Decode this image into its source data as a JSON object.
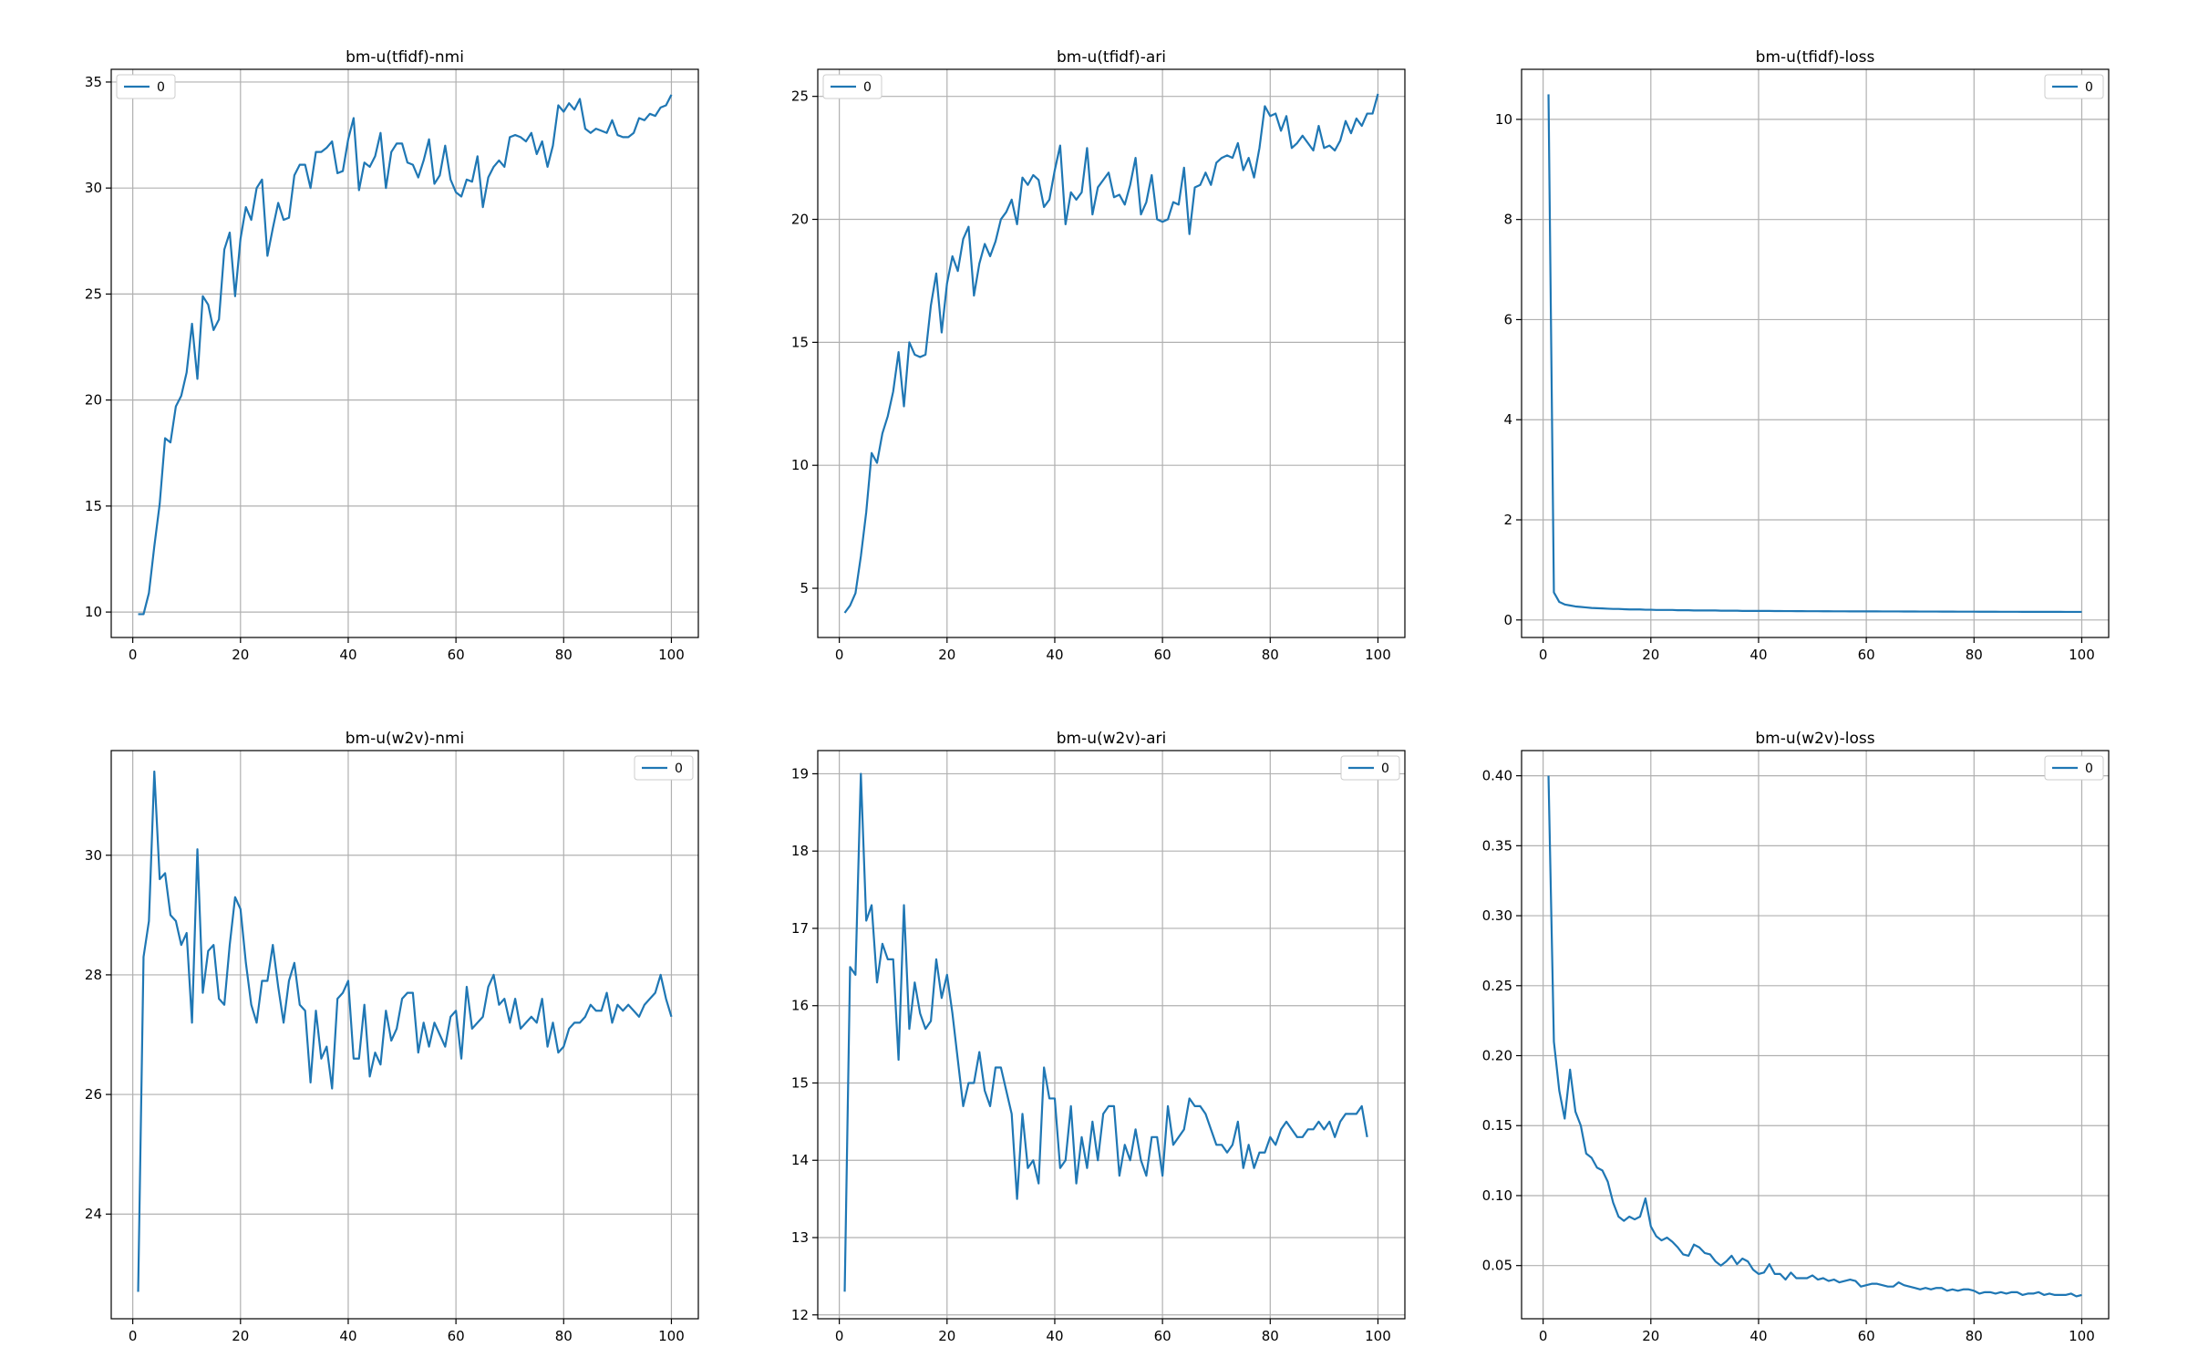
{
  "figure": {
    "line_color": "#1f77b4"
  },
  "chart_data": [
    {
      "type": "line",
      "title": "bm-u(tfidf)-nmi",
      "xlabel": "",
      "ylabel": "",
      "xlim": [
        -4,
        105
      ],
      "ylim": [
        8.8,
        35.6
      ],
      "xticks": [
        0,
        20,
        40,
        60,
        80,
        100
      ],
      "yticks": [
        10,
        15,
        20,
        25,
        30,
        35
      ],
      "grid": true,
      "legend": "upper-left",
      "series": [
        {
          "name": "0",
          "x_start": 1,
          "values": [
            9.9,
            9.9,
            10.9,
            13.1,
            15.1,
            18.2,
            18.0,
            19.7,
            20.2,
            21.3,
            23.6,
            21.0,
            24.9,
            24.5,
            23.3,
            23.8,
            27.1,
            27.9,
            24.9,
            27.6,
            29.1,
            28.5,
            30.0,
            30.4,
            26.8,
            28.1,
            29.3,
            28.5,
            28.6,
            30.6,
            31.1,
            31.1,
            30.0,
            31.7,
            31.7,
            31.9,
            32.2,
            30.7,
            30.8,
            32.3,
            33.3,
            29.9,
            31.2,
            31.0,
            31.5,
            32.6,
            30.0,
            31.7,
            32.1,
            32.1,
            31.2,
            31.1,
            30.5,
            31.3,
            32.3,
            30.2,
            30.6,
            32.0,
            30.4,
            29.8,
            29.6,
            30.4,
            30.3,
            31.5,
            29.1,
            30.5,
            31.0,
            31.3,
            31.0,
            32.4,
            32.5,
            32.4,
            32.2,
            32.6,
            31.6,
            32.2,
            31.0,
            32.0,
            33.9,
            33.6,
            34.0,
            33.7,
            34.2,
            32.8,
            32.6,
            32.8,
            32.7,
            32.6,
            33.2,
            32.5,
            32.4,
            32.4,
            32.6,
            33.3,
            33.2,
            33.5,
            33.4,
            33.8,
            33.9,
            34.4
          ]
        }
      ]
    },
    {
      "type": "line",
      "title": "bm-u(tfidf)-ari",
      "xlabel": "",
      "ylabel": "",
      "xlim": [
        -4,
        105
      ],
      "ylim": [
        3.0,
        26.1
      ],
      "xticks": [
        0,
        20,
        40,
        60,
        80,
        100
      ],
      "yticks": [
        5,
        10,
        15,
        20,
        25
      ],
      "grid": true,
      "legend": "upper-left",
      "series": [
        {
          "name": "0",
          "x_start": 1,
          "values": [
            4.0,
            4.3,
            4.8,
            6.3,
            8.1,
            10.5,
            10.1,
            11.3,
            12.0,
            13.0,
            14.6,
            12.4,
            15.0,
            14.5,
            14.4,
            14.5,
            16.5,
            17.8,
            15.4,
            17.4,
            18.5,
            17.9,
            19.2,
            19.7,
            16.9,
            18.2,
            19.0,
            18.5,
            19.1,
            20.0,
            20.3,
            20.8,
            19.8,
            21.7,
            21.4,
            21.8,
            21.6,
            20.5,
            20.8,
            22.0,
            23.0,
            19.8,
            21.1,
            20.8,
            21.1,
            22.9,
            20.2,
            21.3,
            21.6,
            21.9,
            20.9,
            21.0,
            20.6,
            21.4,
            22.5,
            20.2,
            20.7,
            21.8,
            20.0,
            19.9,
            20.0,
            20.7,
            20.6,
            22.1,
            19.4,
            21.3,
            21.4,
            21.9,
            21.4,
            22.3,
            22.5,
            22.6,
            22.5,
            23.1,
            22.0,
            22.5,
            21.7,
            22.9,
            24.6,
            24.2,
            24.3,
            23.6,
            24.2,
            22.9,
            23.1,
            23.4,
            23.1,
            22.8,
            23.8,
            22.9,
            23.0,
            22.8,
            23.2,
            24.0,
            23.5,
            24.1,
            23.8,
            24.3,
            24.3,
            25.1
          ]
        }
      ]
    },
    {
      "type": "line",
      "title": "bm-u(tfidf)-loss",
      "xlabel": "",
      "ylabel": "",
      "xlim": [
        -4,
        105
      ],
      "ylim": [
        -0.35,
        11.0
      ],
      "xticks": [
        0,
        20,
        40,
        60,
        80,
        100
      ],
      "yticks": [
        0,
        2,
        4,
        6,
        8,
        10
      ],
      "grid": true,
      "legend": "upper-right",
      "series": [
        {
          "name": "0",
          "x_start": 1,
          "values": [
            10.5,
            0.55,
            0.36,
            0.31,
            0.29,
            0.27,
            0.26,
            0.25,
            0.24,
            0.235,
            0.23,
            0.225,
            0.22,
            0.22,
            0.215,
            0.21,
            0.21,
            0.21,
            0.205,
            0.205,
            0.2,
            0.2,
            0.2,
            0.2,
            0.195,
            0.195,
            0.195,
            0.19,
            0.19,
            0.19,
            0.19,
            0.19,
            0.185,
            0.185,
            0.185,
            0.185,
            0.18,
            0.18,
            0.18,
            0.18,
            0.18,
            0.18,
            0.178,
            0.178,
            0.177,
            0.177,
            0.176,
            0.176,
            0.175,
            0.175,
            0.175,
            0.174,
            0.174,
            0.173,
            0.173,
            0.173,
            0.172,
            0.172,
            0.172,
            0.171,
            0.171,
            0.171,
            0.17,
            0.17,
            0.17,
            0.17,
            0.169,
            0.169,
            0.169,
            0.168,
            0.168,
            0.168,
            0.168,
            0.167,
            0.167,
            0.167,
            0.166,
            0.166,
            0.166,
            0.166,
            0.165,
            0.165,
            0.165,
            0.165,
            0.164,
            0.164,
            0.164,
            0.164,
            0.163,
            0.163,
            0.163,
            0.163,
            0.162,
            0.162,
            0.162,
            0.162,
            0.161,
            0.161,
            0.161,
            0.161
          ]
        }
      ]
    },
    {
      "type": "line",
      "title": "bm-u(w2v)-nmi",
      "xlabel": "",
      "ylabel": "",
      "xlim": [
        -4,
        105
      ],
      "ylim": [
        22.25,
        31.75
      ],
      "xticks": [
        0,
        20,
        40,
        60,
        80,
        100
      ],
      "yticks": [
        24,
        26,
        28,
        30
      ],
      "grid": true,
      "legend": "upper-right",
      "series": [
        {
          "name": "0",
          "x_start": 1,
          "values": [
            22.7,
            28.3,
            28.9,
            31.4,
            29.6,
            29.7,
            29.0,
            28.9,
            28.5,
            28.7,
            27.2,
            30.1,
            27.7,
            28.4,
            28.5,
            27.6,
            27.5,
            28.5,
            29.3,
            29.1,
            28.2,
            27.5,
            27.2,
            27.9,
            27.9,
            28.5,
            27.8,
            27.2,
            27.9,
            28.2,
            27.5,
            27.4,
            26.2,
            27.4,
            26.6,
            26.8,
            26.1,
            27.6,
            27.7,
            27.9,
            26.6,
            26.6,
            27.5,
            26.3,
            26.7,
            26.5,
            27.4,
            26.9,
            27.1,
            27.6,
            27.7,
            27.7,
            26.7,
            27.2,
            26.8,
            27.2,
            27.0,
            26.8,
            27.3,
            27.4,
            26.6,
            27.8,
            27.1,
            27.2,
            27.3,
            27.8,
            28.0,
            27.5,
            27.6,
            27.2,
            27.6,
            27.1,
            27.2,
            27.3,
            27.2,
            27.6,
            26.8,
            27.2,
            26.7,
            26.8,
            27.1,
            27.2,
            27.2,
            27.3,
            27.5,
            27.4,
            27.4,
            27.7,
            27.2,
            27.5,
            27.4,
            27.5,
            27.4,
            27.3,
            27.5,
            27.6,
            27.7,
            28.0,
            27.6,
            27.3
          ]
        }
      ]
    },
    {
      "type": "line",
      "title": "bm-u(w2v)-ari",
      "xlabel": "",
      "ylabel": "",
      "xlim": [
        -4,
        105
      ],
      "ylim": [
        11.95,
        19.3
      ],
      "xticks": [
        0,
        20,
        40,
        60,
        80,
        100
      ],
      "yticks": [
        12,
        13,
        14,
        15,
        16,
        17,
        18,
        19
      ],
      "grid": true,
      "legend": "upper-right",
      "series": [
        {
          "name": "0",
          "x_start": 1,
          "values": [
            12.3,
            16.5,
            16.4,
            19.0,
            17.1,
            17.3,
            16.3,
            16.8,
            16.6,
            16.6,
            15.3,
            17.3,
            15.7,
            16.3,
            15.9,
            15.7,
            15.8,
            16.6,
            16.1,
            16.4,
            15.9,
            15.3,
            14.7,
            15.0,
            15.0,
            15.4,
            14.9,
            14.7,
            15.2,
            15.2,
            14.9,
            14.6,
            13.5,
            14.6,
            13.9,
            14.0,
            13.7,
            15.2,
            14.8,
            14.8,
            13.9,
            14.0,
            14.7,
            13.7,
            14.3,
            13.9,
            14.5,
            14.0,
            14.6,
            14.7,
            14.7,
            13.8,
            14.2,
            14.0,
            14.4,
            14.0,
            13.8,
            14.3,
            14.3,
            13.8,
            14.7,
            14.2,
            14.3,
            14.4,
            14.8,
            14.7,
            14.7,
            14.6,
            14.4,
            14.2,
            14.2,
            14.1,
            14.2,
            14.5,
            13.9,
            14.2,
            13.9,
            14.1,
            14.1,
            14.3,
            14.2,
            14.4,
            14.5,
            14.4,
            14.3,
            14.3,
            14.4,
            14.4,
            14.5,
            14.4,
            14.5,
            14.3,
            14.5,
            14.6,
            14.6,
            14.6,
            14.7,
            14.3
          ]
        }
      ]
    },
    {
      "type": "line",
      "title": "bm-u(w2v)-loss",
      "xlabel": "",
      "ylabel": "",
      "xlim": [
        -4,
        105
      ],
      "ylim": [
        0.012,
        0.418
      ],
      "xticks": [
        0,
        20,
        40,
        60,
        80,
        100
      ],
      "yticks": [
        0.05,
        0.1,
        0.15,
        0.2,
        0.25,
        0.3,
        0.35,
        0.4
      ],
      "grid": true,
      "legend": "upper-right",
      "series": [
        {
          "name": "0",
          "x_start": 1,
          "values": [
            0.4,
            0.21,
            0.175,
            0.155,
            0.19,
            0.16,
            0.15,
            0.13,
            0.127,
            0.12,
            0.118,
            0.11,
            0.095,
            0.085,
            0.082,
            0.085,
            0.083,
            0.085,
            0.098,
            0.078,
            0.071,
            0.068,
            0.07,
            0.067,
            0.063,
            0.058,
            0.057,
            0.065,
            0.063,
            0.059,
            0.058,
            0.053,
            0.05,
            0.053,
            0.057,
            0.051,
            0.055,
            0.053,
            0.047,
            0.044,
            0.045,
            0.051,
            0.044,
            0.044,
            0.04,
            0.045,
            0.041,
            0.041,
            0.041,
            0.043,
            0.04,
            0.041,
            0.039,
            0.04,
            0.038,
            0.039,
            0.04,
            0.039,
            0.035,
            0.036,
            0.037,
            0.037,
            0.036,
            0.035,
            0.035,
            0.038,
            0.036,
            0.035,
            0.034,
            0.033,
            0.034,
            0.033,
            0.034,
            0.034,
            0.032,
            0.033,
            0.032,
            0.033,
            0.033,
            0.032,
            0.03,
            0.031,
            0.031,
            0.03,
            0.031,
            0.03,
            0.031,
            0.031,
            0.029,
            0.03,
            0.03,
            0.031,
            0.029,
            0.03,
            0.029,
            0.029,
            0.029,
            0.03,
            0.028,
            0.029
          ]
        }
      ]
    }
  ]
}
